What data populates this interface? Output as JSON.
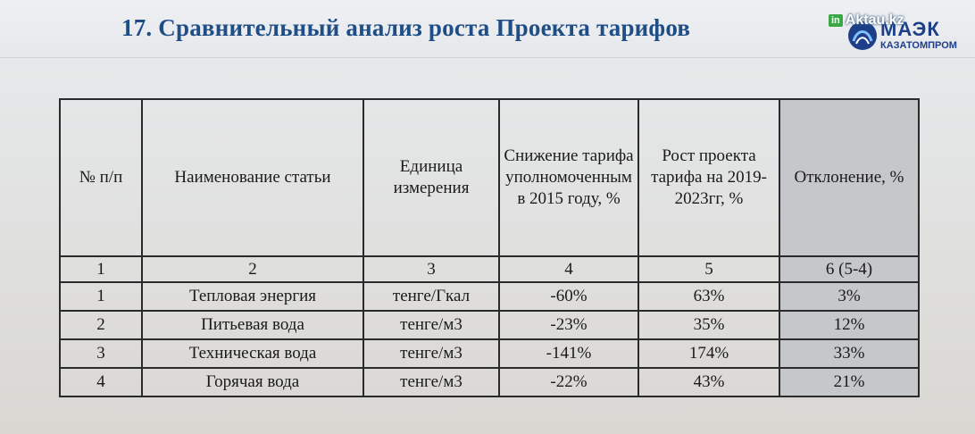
{
  "slide": {
    "title": "17. Сравнительный анализ роста Проекта тарифов"
  },
  "watermark": {
    "badge": "in",
    "site": "Aktau.kz"
  },
  "logo": {
    "name": "МАЭК",
    "subtitle": "КАЗАТОМПРОМ",
    "colors": {
      "primary": "#1d3f8a",
      "accent": "#2f7fc9"
    }
  },
  "table": {
    "headers": [
      "№ п/п",
      "Наименование статьи",
      "Единица измерения",
      "Снижение тарифа уполномоченным в 2015 году, %",
      "Рост проекта тарифа на 2019-2023гг, %",
      "Отклонение, %"
    ],
    "column_numbers": [
      "1",
      "2",
      "3",
      "4",
      "5",
      "6 (5-4)"
    ],
    "rows": [
      {
        "num": "1",
        "name": "Тепловая энергия",
        "unit": "тенге/Гкал",
        "reduction": "-60%",
        "growth": "63%",
        "deviation": "3%"
      },
      {
        "num": "2",
        "name": "Питьевая вода",
        "unit": "тенге/м3",
        "reduction": "-23%",
        "growth": "35%",
        "deviation": "12%"
      },
      {
        "num": "3",
        "name": "Техническая вода",
        "unit": "тенге/м3",
        "reduction": "-141%",
        "growth": "174%",
        "deviation": "33%"
      },
      {
        "num": "4",
        "name": "Горячая вода",
        "unit": "тенге/м3",
        "reduction": "-22%",
        "growth": "43%",
        "deviation": "21%"
      }
    ]
  }
}
